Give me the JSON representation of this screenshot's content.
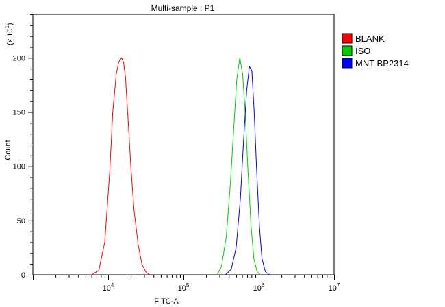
{
  "chart_data": {
    "type": "line",
    "title": "Multi-sample : P1",
    "xlabel": "FITC-A",
    "ylabel": "Count",
    "y_multiplier_label": "(x 10^1)",
    "x_scale": "log",
    "xlim": [
      1000,
      10000000
    ],
    "ylim": [
      0,
      240
    ],
    "x_ticks": [
      {
        "base": "10",
        "exp": "4",
        "value": 10000
      },
      {
        "base": "10",
        "exp": "5",
        "value": 100000
      },
      {
        "base": "10",
        "exp": "6",
        "value": 1000000
      },
      {
        "base": "10",
        "exp": "7",
        "value": 10000000
      }
    ],
    "y_ticks": [
      0,
      50,
      100,
      150,
      200
    ],
    "grid": false,
    "legend_position": "top-right",
    "series": [
      {
        "name": "BLANK",
        "color": "#ff0000",
        "points": [
          [
            6000,
            0
          ],
          [
            7500,
            4
          ],
          [
            9000,
            30
          ],
          [
            10500,
            95
          ],
          [
            11500,
            150
          ],
          [
            12800,
            185
          ],
          [
            13800,
            196
          ],
          [
            15000,
            200
          ],
          [
            16000,
            196
          ],
          [
            17000,
            182
          ],
          [
            18500,
            140
          ],
          [
            20000,
            100
          ],
          [
            22000,
            60
          ],
          [
            25000,
            28
          ],
          [
            28000,
            10
          ],
          [
            32000,
            2
          ],
          [
            36000,
            0
          ]
        ]
      },
      {
        "name": "ISO",
        "color": "#00cc00",
        "points": [
          [
            280000,
            0
          ],
          [
            320000,
            8
          ],
          [
            370000,
            35
          ],
          [
            420000,
            85
          ],
          [
            470000,
            140
          ],
          [
            510000,
            180
          ],
          [
            560000,
            200
          ],
          [
            610000,
            185
          ],
          [
            660000,
            150
          ],
          [
            720000,
            95
          ],
          [
            790000,
            45
          ],
          [
            860000,
            15
          ],
          [
            950000,
            3
          ],
          [
            1050000,
            0
          ]
        ]
      },
      {
        "name": "MNT BP2314",
        "color": "#0000ff",
        "points": [
          [
            360000,
            0
          ],
          [
            430000,
            5
          ],
          [
            500000,
            25
          ],
          [
            570000,
            70
          ],
          [
            630000,
            125
          ],
          [
            690000,
            170
          ],
          [
            750000,
            192
          ],
          [
            810000,
            188
          ],
          [
            870000,
            150
          ],
          [
            940000,
            95
          ],
          [
            1020000,
            45
          ],
          [
            1100000,
            15
          ],
          [
            1220000,
            3
          ],
          [
            1380000,
            0
          ]
        ]
      }
    ]
  }
}
